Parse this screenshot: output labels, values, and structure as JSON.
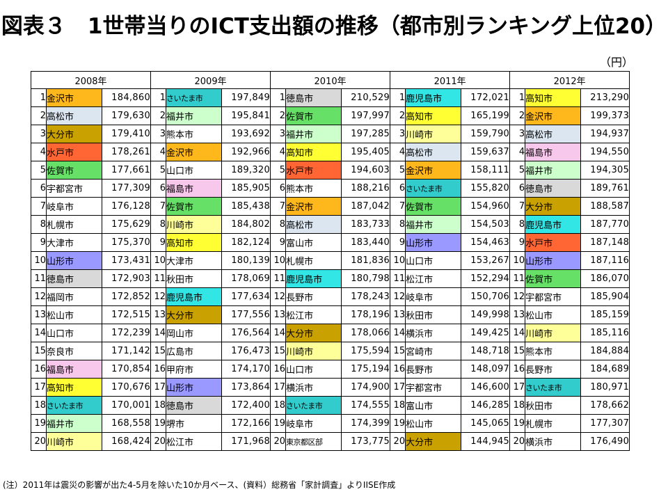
{
  "title": "図表３　1世帯当りのICT支出額の推移（都市別ランキング上位20）",
  "unit": "（円）",
  "note": "(注）2011年は震災の影響が出た4-5月を除いた10か月ベース、(資料）総務省「家計調査」よりIISE作成",
  "colors": {
    "gold": "#ffb81c",
    "light_blue": "#dce6f1",
    "dark_gold": "#c9a100",
    "orange_red": "#ff6633",
    "green": "#66e066",
    "pink": "#f8c8ec",
    "yellow": "#ffff33",
    "pale_yellow": "#ffff99",
    "cyan": "#33e6e6",
    "teal": "#33cccc",
    "periwinkle": "#9999ff",
    "light_gray": "#d9d9d9",
    "pale_green": "#ccffcc",
    "none": "#ffffff"
  },
  "years": [
    {
      "label": "2008年",
      "rows": [
        {
          "rank": "1",
          "city": "金沢市",
          "value": "184,860",
          "color": "#ffb81c"
        },
        {
          "rank": "2",
          "city": "高松市",
          "value": "179,630",
          "color": "#dce6f1"
        },
        {
          "rank": "3",
          "city": "大分市",
          "value": "179,410",
          "color": "#c9a100"
        },
        {
          "rank": "4",
          "city": "水戸市",
          "value": "178,261",
          "color": "#ff6633"
        },
        {
          "rank": "5",
          "city": "佐賀市",
          "value": "177,661",
          "color": "#66e066"
        },
        {
          "rank": "6",
          "city": "宇都宮市",
          "value": "177,309",
          "color": "#ffffff"
        },
        {
          "rank": "7",
          "city": "岐阜市",
          "value": "176,128",
          "color": "#ffffff"
        },
        {
          "rank": "8",
          "city": "札幌市",
          "value": "175,629",
          "color": "#ffffff"
        },
        {
          "rank": "9",
          "city": "大津市",
          "value": "175,370",
          "color": "#ffffff"
        },
        {
          "rank": "10",
          "city": "山形市",
          "value": "173,431",
          "color": "#9999ff"
        },
        {
          "rank": "11",
          "city": "徳島市",
          "value": "172,903",
          "color": "#d9d9d9"
        },
        {
          "rank": "12",
          "city": "福岡市",
          "value": "172,852",
          "color": "#ffffff"
        },
        {
          "rank": "13",
          "city": "松山市",
          "value": "172,515",
          "color": "#ffffff"
        },
        {
          "rank": "14",
          "city": "山口市",
          "value": "172,239",
          "color": "#ffffff"
        },
        {
          "rank": "15",
          "city": "奈良市",
          "value": "171,142",
          "color": "#ffffff"
        },
        {
          "rank": "16",
          "city": "福島市",
          "value": "170,854",
          "color": "#f8c8ec"
        },
        {
          "rank": "17",
          "city": "高知市",
          "value": "170,676",
          "color": "#ffff33"
        },
        {
          "rank": "18",
          "city": "さいたま市",
          "value": "170,001",
          "color": "#33cccc"
        },
        {
          "rank": "19",
          "city": "福井市",
          "value": "168,558",
          "color": "#ccffcc"
        },
        {
          "rank": "20",
          "city": "川崎市",
          "value": "168,424",
          "color": "#ffff99"
        }
      ]
    },
    {
      "label": "2009年",
      "rows": [
        {
          "rank": "1",
          "city": "さいたま市",
          "value": "197,849",
          "color": "#33cccc"
        },
        {
          "rank": "2",
          "city": "福井市",
          "value": "195,841",
          "color": "#ccffcc"
        },
        {
          "rank": "3",
          "city": "熊本市",
          "value": "193,692",
          "color": "#ffffff"
        },
        {
          "rank": "4",
          "city": "金沢市",
          "value": "192,966",
          "color": "#ffb81c"
        },
        {
          "rank": "5",
          "city": "山口市",
          "value": "189,320",
          "color": "#ffffff"
        },
        {
          "rank": "6",
          "city": "福島市",
          "value": "185,905",
          "color": "#f8c8ec"
        },
        {
          "rank": "7",
          "city": "佐賀市",
          "value": "185,438",
          "color": "#66e066"
        },
        {
          "rank": "8",
          "city": "川崎市",
          "value": "184,802",
          "color": "#ffff99"
        },
        {
          "rank": "9",
          "city": "高知市",
          "value": "182,124",
          "color": "#ffff33"
        },
        {
          "rank": "10",
          "city": "大津市",
          "value": "180,139",
          "color": "#ffffff"
        },
        {
          "rank": "11",
          "city": "秋田市",
          "value": "178,069",
          "color": "#ffffff"
        },
        {
          "rank": "12",
          "city": "鹿児島市",
          "value": "177,634",
          "color": "#33e6e6"
        },
        {
          "rank": "13",
          "city": "大分市",
          "value": "177,556",
          "color": "#c9a100"
        },
        {
          "rank": "14",
          "city": "岡山市",
          "value": "176,564",
          "color": "#ffffff"
        },
        {
          "rank": "15",
          "city": "広島市",
          "value": "176,473",
          "color": "#ffffff"
        },
        {
          "rank": "16",
          "city": "甲府市",
          "value": "174,170",
          "color": "#ffffff"
        },
        {
          "rank": "17",
          "city": "山形市",
          "value": "173,864",
          "color": "#9999ff"
        },
        {
          "rank": "18",
          "city": "徳島市",
          "value": "172,400",
          "color": "#d9d9d9"
        },
        {
          "rank": "19",
          "city": "堺市",
          "value": "172,166",
          "color": "#ffffff"
        },
        {
          "rank": "20",
          "city": "松江市",
          "value": "171,968",
          "color": "#ffffff"
        }
      ]
    },
    {
      "label": "2010年",
      "rows": [
        {
          "rank": "1",
          "city": "徳島市",
          "value": "210,529",
          "color": "#d9d9d9"
        },
        {
          "rank": "2",
          "city": "佐賀市",
          "value": "197,997",
          "color": "#66e066"
        },
        {
          "rank": "3",
          "city": "福井市",
          "value": "197,285",
          "color": "#ccffcc"
        },
        {
          "rank": "4",
          "city": "高知市",
          "value": "195,405",
          "color": "#ffff33"
        },
        {
          "rank": "5",
          "city": "水戸市",
          "value": "194,603",
          "color": "#ff6633"
        },
        {
          "rank": "6",
          "city": "熊本市",
          "value": "188,216",
          "color": "#ffffff"
        },
        {
          "rank": "7",
          "city": "金沢市",
          "value": "187,042",
          "color": "#ffb81c"
        },
        {
          "rank": "8",
          "city": "高松市",
          "value": "183,733",
          "color": "#dce6f1"
        },
        {
          "rank": "9",
          "city": "富山市",
          "value": "183,440",
          "color": "#ffffff"
        },
        {
          "rank": "10",
          "city": "札幌市",
          "value": "181,836",
          "color": "#ffffff"
        },
        {
          "rank": "11",
          "city": "鹿児島市",
          "value": "180,798",
          "color": "#33e6e6"
        },
        {
          "rank": "12",
          "city": "長野市",
          "value": "178,243",
          "color": "#ffffff"
        },
        {
          "rank": "13",
          "city": "松江市",
          "value": "178,196",
          "color": "#ffffff"
        },
        {
          "rank": "14",
          "city": "大分市",
          "value": "178,066",
          "color": "#c9a100"
        },
        {
          "rank": "15",
          "city": "川崎市",
          "value": "175,594",
          "color": "#ffff99"
        },
        {
          "rank": "16",
          "city": "山口市",
          "value": "175,194",
          "color": "#ffffff"
        },
        {
          "rank": "17",
          "city": "横浜市",
          "value": "174,900",
          "color": "#ffffff"
        },
        {
          "rank": "18",
          "city": "さいたま市",
          "value": "174,555",
          "color": "#33cccc"
        },
        {
          "rank": "19",
          "city": "岐阜市",
          "value": "174,399",
          "color": "#ffffff"
        },
        {
          "rank": "20",
          "city": "東京都区部",
          "value": "173,775",
          "color": "#ffffff"
        }
      ]
    },
    {
      "label": "2011年",
      "rows": [
        {
          "rank": "1",
          "city": "鹿児島市",
          "value": "172,021",
          "color": "#33e6e6"
        },
        {
          "rank": "2",
          "city": "高知市",
          "value": "165,199",
          "color": "#ffff33"
        },
        {
          "rank": "3",
          "city": "川崎市",
          "value": "159,790",
          "color": "#ffff99"
        },
        {
          "rank": "4",
          "city": "高松市",
          "value": "159,637",
          "color": "#dce6f1"
        },
        {
          "rank": "5",
          "city": "金沢市",
          "value": "158,111",
          "color": "#ffb81c"
        },
        {
          "rank": "6",
          "city": "さいたま市",
          "value": "155,820",
          "color": "#33cccc"
        },
        {
          "rank": "7",
          "city": "佐賀市",
          "value": "154,960",
          "color": "#66e066"
        },
        {
          "rank": "8",
          "city": "福井市",
          "value": "154,503",
          "color": "#ccffcc"
        },
        {
          "rank": "9",
          "city": "山形市",
          "value": "154,463",
          "color": "#9999ff"
        },
        {
          "rank": "10",
          "city": "山口市",
          "value": "153,267",
          "color": "#ffffff"
        },
        {
          "rank": "11",
          "city": "松江市",
          "value": "152,294",
          "color": "#ffffff"
        },
        {
          "rank": "12",
          "city": "岐阜市",
          "value": "150,706",
          "color": "#ffffff"
        },
        {
          "rank": "13",
          "city": "秋田市",
          "value": "149,998",
          "color": "#ffffff"
        },
        {
          "rank": "14",
          "city": "横浜市",
          "value": "149,425",
          "color": "#ffffff"
        },
        {
          "rank": "15",
          "city": "宮崎市",
          "value": "148,718",
          "color": "#ffffff"
        },
        {
          "rank": "16",
          "city": "長野市",
          "value": "148,097",
          "color": "#ffffff"
        },
        {
          "rank": "17",
          "city": "宇都宮市",
          "value": "146,600",
          "color": "#ffffff"
        },
        {
          "rank": "18",
          "city": "富山市",
          "value": "146,285",
          "color": "#ffffff"
        },
        {
          "rank": "19",
          "city": "松山市",
          "value": "145,065",
          "color": "#ffffff"
        },
        {
          "rank": "20",
          "city": "大分市",
          "value": "144,945",
          "color": "#c9a100"
        }
      ]
    },
    {
      "label": "2012年",
      "rows": [
        {
          "rank": "1",
          "city": "高知市",
          "value": "213,290",
          "color": "#ffff33"
        },
        {
          "rank": "2",
          "city": "金沢市",
          "value": "199,373",
          "color": "#ffb81c"
        },
        {
          "rank": "3",
          "city": "高松市",
          "value": "194,937",
          "color": "#dce6f1"
        },
        {
          "rank": "4",
          "city": "福島市",
          "value": "194,550",
          "color": "#f8c8ec"
        },
        {
          "rank": "5",
          "city": "福井市",
          "value": "194,305",
          "color": "#ccffcc"
        },
        {
          "rank": "6",
          "city": "徳島市",
          "value": "189,761",
          "color": "#d9d9d9"
        },
        {
          "rank": "7",
          "city": "大分市",
          "value": "188,587",
          "color": "#c9a100"
        },
        {
          "rank": "8",
          "city": "鹿児島市",
          "value": "187,770",
          "color": "#33e6e6"
        },
        {
          "rank": "9",
          "city": "水戸市",
          "value": "187,148",
          "color": "#ff6633"
        },
        {
          "rank": "10",
          "city": "山形市",
          "value": "187,116",
          "color": "#9999ff"
        },
        {
          "rank": "11",
          "city": "佐賀市",
          "value": "186,070",
          "color": "#66e066"
        },
        {
          "rank": "12",
          "city": "宇都宮市",
          "value": "185,904",
          "color": "#ffffff"
        },
        {
          "rank": "13",
          "city": "松山市",
          "value": "185,159",
          "color": "#ffffff"
        },
        {
          "rank": "14",
          "city": "川崎市",
          "value": "185,116",
          "color": "#ffff99"
        },
        {
          "rank": "15",
          "city": "熊本市",
          "value": "184,884",
          "color": "#ffffff"
        },
        {
          "rank": "16",
          "city": "長野市",
          "value": "184,689",
          "color": "#ffffff"
        },
        {
          "rank": "17",
          "city": "さいたま市",
          "value": "180,971",
          "color": "#33cccc"
        },
        {
          "rank": "18",
          "city": "秋田市",
          "value": "178,662",
          "color": "#ffffff"
        },
        {
          "rank": "19",
          "city": "札幌市",
          "value": "177,307",
          "color": "#ffffff"
        },
        {
          "rank": "20",
          "city": "横浜市",
          "value": "176,490",
          "color": "#ffffff"
        }
      ]
    }
  ]
}
